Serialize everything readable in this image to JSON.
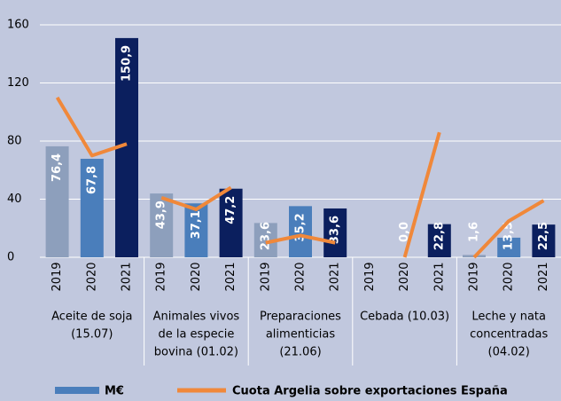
{
  "chart_data": {
    "type": "bar",
    "categories": [
      [
        "Aceite de soja",
        "(15.07)"
      ],
      [
        "Animales vivos",
        "de la especie",
        "bovina (01.02)"
      ],
      [
        "Preparaciones",
        "alimenticias",
        "(21.06)"
      ],
      [
        "Cebada (10.03)"
      ],
      [
        "Leche y nata",
        "concentradas",
        "(04.02)"
      ]
    ],
    "years": [
      "2019",
      "2020",
      "2021"
    ],
    "year_colors": [
      "#8d9fbc",
      "#4a7ebb",
      "#0b1f5e"
    ],
    "ylim": [
      0,
      160
    ],
    "yticks": [
      0,
      40,
      80,
      120,
      160
    ],
    "grid": true,
    "series": [
      {
        "name": "M€",
        "type": "bar",
        "color": "#4a7ebb",
        "values": [
          [
            76.4,
            67.8,
            150.9
          ],
          [
            43.9,
            37.1,
            47.2
          ],
          [
            23.6,
            35.2,
            33.6
          ],
          [
            null,
            0,
            22.8
          ],
          [
            1.6,
            13.5,
            22.5
          ]
        ],
        "value_labels": [
          [
            "76,4",
            "67,8",
            "150,9"
          ],
          [
            "43,9",
            "37,1",
            "47,2"
          ],
          [
            "23,6",
            "35,2",
            "33,6"
          ],
          [
            null,
            "0,0",
            "22,8"
          ],
          [
            "1,6",
            "13,5",
            "22,5"
          ]
        ]
      },
      {
        "name": "Cuota Argelia sobre exportaciones España",
        "type": "line",
        "color": "#f0883a",
        "values": [
          [
            110,
            70,
            78
          ],
          [
            41,
            33,
            48
          ],
          [
            10,
            15,
            10
          ],
          [
            null,
            0,
            86
          ],
          [
            0,
            25,
            39
          ]
        ]
      }
    ]
  }
}
